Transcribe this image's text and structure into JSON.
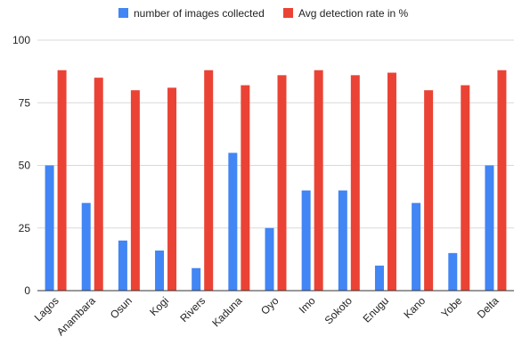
{
  "chart_data": {
    "type": "bar",
    "title": "",
    "xlabel": "",
    "ylabel": "",
    "ylim": [
      0,
      100
    ],
    "yticks": [
      0,
      25,
      50,
      75,
      100
    ],
    "grid": true,
    "legend_position": "top",
    "categories": [
      "Lagos",
      "Anambara",
      "Osun",
      "Kogi",
      "Rivers",
      "Kaduna",
      "Oyo",
      "Imo",
      "Sokoto",
      "Enugu",
      "Kano",
      "Yobe",
      "Delta"
    ],
    "series": [
      {
        "name": "number of images collected",
        "color": "#4285f4",
        "values": [
          50,
          35,
          20,
          16,
          9,
          55,
          25,
          40,
          40,
          10,
          35,
          15,
          50
        ]
      },
      {
        "name": "Avg detection rate in %",
        "color": "#ea4335",
        "values": [
          88,
          85,
          80,
          81,
          88,
          82,
          86,
          88,
          86,
          87,
          80,
          82,
          88
        ]
      }
    ]
  }
}
